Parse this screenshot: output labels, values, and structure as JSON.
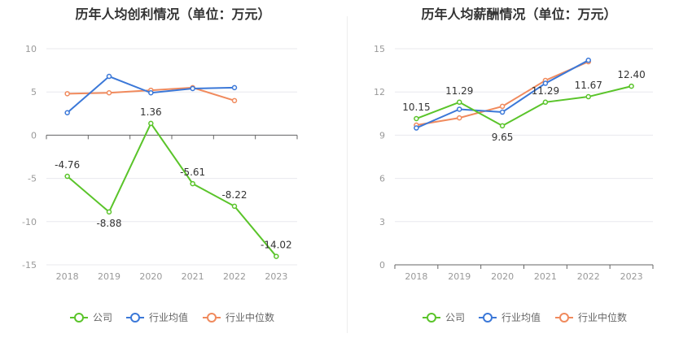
{
  "colors": {
    "company": "#5ac42a",
    "industry_avg": "#3b78d8",
    "industry_median": "#f08a5d"
  },
  "legend": {
    "company": "公司",
    "industry_avg": "行业均值",
    "industry_median": "行业中位数"
  },
  "chart_data": [
    {
      "type": "line",
      "title": "历年人均创利情况（单位：万元）",
      "x": [
        "2018",
        "2019",
        "2020",
        "2021",
        "2022",
        "2023"
      ],
      "ylim": [
        -15,
        10
      ],
      "yticks": [
        -15,
        -10,
        -5,
        0,
        5,
        10
      ],
      "grid": true,
      "legend_position": "bottom",
      "series": [
        {
          "name": "公司",
          "values": [
            -4.76,
            -8.88,
            1.36,
            -5.61,
            -8.22,
            -14.02
          ],
          "labels": [
            "-4.76",
            "-8.88",
            "1.36",
            "-5.61",
            "-8.22",
            "-14.02"
          ]
        },
        {
          "name": "行业均值",
          "values": [
            2.6,
            6.8,
            4.9,
            5.4,
            5.5,
            null
          ]
        },
        {
          "name": "行业中位数",
          "values": [
            4.8,
            4.9,
            5.2,
            5.5,
            4.0,
            null
          ]
        }
      ]
    },
    {
      "type": "line",
      "title": "历年人均薪酬情况（单位：万元）",
      "x": [
        "2018",
        "2019",
        "2020",
        "2021",
        "2022",
        "2023"
      ],
      "ylim": [
        0,
        15
      ],
      "yticks": [
        0,
        3,
        6,
        9,
        12,
        15
      ],
      "grid": true,
      "legend_position": "bottom",
      "series": [
        {
          "name": "公司",
          "values": [
            10.15,
            11.29,
            9.65,
            11.29,
            11.67,
            12.4
          ],
          "labels": [
            "10.15",
            "11.29",
            "9.65",
            "11.29",
            "11.67",
            "12.40"
          ]
        },
        {
          "name": "行业均值",
          "values": [
            9.5,
            10.8,
            10.6,
            12.6,
            14.2,
            null
          ]
        },
        {
          "name": "行业中位数",
          "values": [
            9.7,
            10.2,
            11.0,
            12.8,
            14.1,
            null
          ]
        }
      ]
    }
  ]
}
